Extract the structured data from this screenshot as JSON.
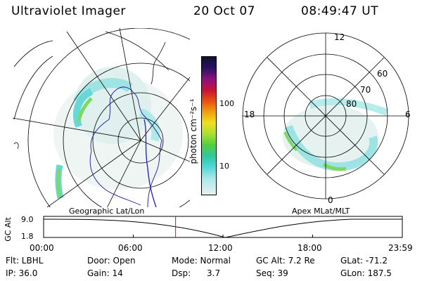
{
  "header": {
    "title": "Ultraviolet Imager",
    "date": "20 Oct 07",
    "time": "08:49:47 UT"
  },
  "colorbar": {
    "unit_label": "photon cm⁻²s⁻¹",
    "ticks": [
      "100",
      "10"
    ]
  },
  "geo_map": {
    "caption": "Geographic Lat/Lon"
  },
  "polar_map": {
    "caption": "Apex MLat/MLT",
    "mlt_labels": [
      "12",
      "18",
      "6",
      "0"
    ],
    "mlat_labels": [
      "60",
      "70",
      "80"
    ]
  },
  "altitude_strip": {
    "axis_label": "GC Alt",
    "y_ticks": [
      "9.0",
      "1.8"
    ],
    "x_ticks": [
      "00:00",
      "06:00",
      "12:00",
      "18:00",
      "23:59"
    ],
    "marker_time_hours": 8.83
  },
  "status": {
    "row1": [
      {
        "key": "flt",
        "text": "Flt: LBHL"
      },
      {
        "key": "door",
        "text": "Door: Open"
      },
      {
        "key": "mode",
        "text": "Mode: Normal"
      },
      {
        "key": "gcalt",
        "text": "GC Alt: 7.2 Re"
      },
      {
        "key": "glat",
        "text": "GLat: -71.2"
      }
    ],
    "row2": [
      {
        "key": "ip",
        "text": "IP: 36.0"
      },
      {
        "key": "gain",
        "text": "Gain: 14"
      },
      {
        "key": "dsp",
        "text": "Dsp:      3.7"
      },
      {
        "key": "seq",
        "text": "Seq: 39"
      },
      {
        "key": "glon",
        "text": "GLon: 187.5"
      }
    ]
  },
  "colors": {
    "marker": "#d01010",
    "coast": "#1a1aa0",
    "aurora_low": "#e8f3f0",
    "aurora_mid": "#66d9d9",
    "aurora_high": "#5ad040"
  }
}
